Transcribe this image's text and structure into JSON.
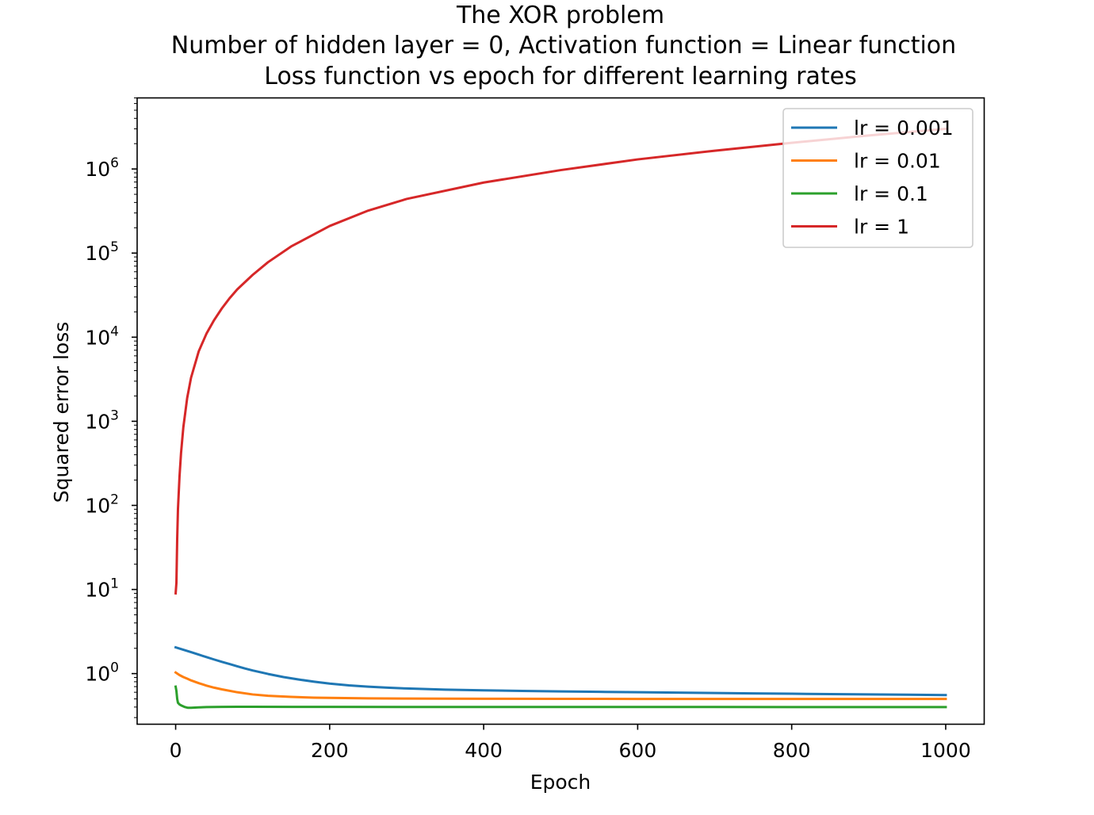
{
  "chart_data": {
    "type": "line",
    "title_lines": [
      "The XOR problem",
      "Number of hidden layer = 0, Activation function = Linear function",
      "Loss function vs epoch for different learning rates"
    ],
    "xlabel": "Epoch",
    "ylabel": "Squared error loss",
    "xlim": [
      -50,
      1050
    ],
    "ylim": [
      0.25,
      7000000
    ],
    "yscale": "log",
    "grid": false,
    "legend_position": "top-right",
    "x_ticks": [
      0,
      200,
      400,
      600,
      800,
      1000
    ],
    "x_tick_labels": [
      "0",
      "200",
      "400",
      "600",
      "800",
      "1000"
    ],
    "y_ticks": [
      {
        "value": 1,
        "base": "10",
        "exp": "0"
      },
      {
        "value": 10,
        "base": "10",
        "exp": "1"
      },
      {
        "value": 100,
        "base": "10",
        "exp": "2"
      },
      {
        "value": 1000,
        "base": "10",
        "exp": "3"
      },
      {
        "value": 10000,
        "base": "10",
        "exp": "4"
      },
      {
        "value": 100000,
        "base": "10",
        "exp": "5"
      },
      {
        "value": 1000000,
        "base": "10",
        "exp": "6"
      }
    ],
    "series": [
      {
        "name": "lr = 0.001",
        "color": "#1f77b4",
        "x": [
          0,
          10,
          20,
          30,
          40,
          50,
          60,
          70,
          80,
          90,
          100,
          120,
          140,
          160,
          180,
          200,
          225,
          250,
          275,
          300,
          350,
          400,
          450,
          500,
          550,
          600,
          650,
          700,
          750,
          800,
          850,
          900,
          950,
          1000
        ],
        "y": [
          2.05,
          1.92,
          1.8,
          1.68,
          1.57,
          1.47,
          1.38,
          1.3,
          1.22,
          1.15,
          1.09,
          0.99,
          0.91,
          0.85,
          0.8,
          0.76,
          0.725,
          0.7,
          0.68,
          0.665,
          0.645,
          0.632,
          0.622,
          0.614,
          0.607,
          0.6,
          0.594,
          0.588,
          0.582,
          0.576,
          0.571,
          0.566,
          0.561,
          0.556
        ]
      },
      {
        "name": "lr = 0.01",
        "color": "#ff7f0e",
        "x": [
          0,
          5,
          10,
          15,
          20,
          30,
          40,
          50,
          60,
          80,
          100,
          120,
          150,
          180,
          200,
          250,
          300,
          400,
          500,
          600,
          700,
          800,
          900,
          1000
        ],
        "y": [
          1.03,
          0.96,
          0.91,
          0.87,
          0.83,
          0.77,
          0.72,
          0.68,
          0.65,
          0.6,
          0.565,
          0.545,
          0.528,
          0.518,
          0.514,
          0.508,
          0.505,
          0.502,
          0.501,
          0.5,
          0.5,
          0.5,
          0.5,
          0.5
        ]
      },
      {
        "name": "lr = 0.1",
        "color": "#2ca02c",
        "x": [
          0,
          1,
          2,
          3,
          5,
          8,
          12,
          16,
          20,
          30,
          40,
          60,
          80,
          100,
          150,
          200,
          300,
          400,
          500,
          600,
          700,
          800,
          900,
          1000
        ],
        "y": [
          0.7,
          0.62,
          0.5,
          0.45,
          0.43,
          0.415,
          0.4,
          0.392,
          0.392,
          0.396,
          0.4,
          0.402,
          0.403,
          0.403,
          0.402,
          0.402,
          0.401,
          0.401,
          0.401,
          0.401,
          0.401,
          0.4,
          0.4,
          0.4
        ]
      },
      {
        "name": "lr = 1",
        "color": "#d62728",
        "x": [
          0,
          1,
          2,
          3,
          5,
          7,
          10,
          15,
          20,
          30,
          40,
          50,
          60,
          70,
          80,
          100,
          120,
          150,
          200,
          250,
          300,
          400,
          500,
          600,
          700,
          800,
          900,
          1000
        ],
        "y": [
          9,
          12,
          40,
          90,
          220,
          420,
          850,
          1900,
          3300,
          6800,
          11000,
          16000,
          22000,
          29000,
          37000,
          55000,
          78000,
          120000,
          210000,
          320000,
          440000,
          690000,
          970000,
          1300000,
          1650000,
          2050000,
          2500000,
          3000000
        ]
      }
    ]
  }
}
